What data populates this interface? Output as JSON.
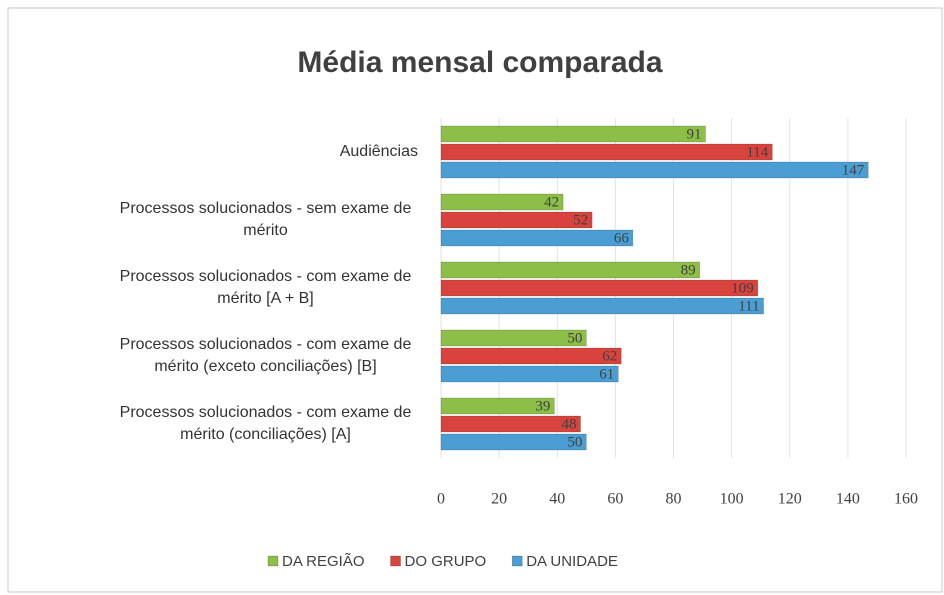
{
  "chart_data": {
    "type": "barh",
    "title": "Média mensal comparada",
    "categories": [
      "Audiências",
      "Processos solucionados - sem exame de mérito",
      "Processos solucionados - com exame de mérito [A + B]",
      "Processos solucionados - com exame de mérito (exceto conciliações) [B]",
      "Processos solucionados - com exame de mérito (conciliações) [A]"
    ],
    "series": [
      {
        "name": "DA REGIÃO",
        "color": "#8dbe47",
        "values": [
          91,
          42,
          89,
          50,
          39
        ]
      },
      {
        "name": "DO GRUPO",
        "color": "#d8433d",
        "values": [
          114,
          52,
          109,
          62,
          48
        ]
      },
      {
        "name": "DA UNIDADE",
        "color": "#4a9ed3",
        "values": [
          147,
          66,
          111,
          61,
          50
        ]
      }
    ],
    "xlim": [
      0,
      160
    ],
    "xticks": [
      0,
      20,
      40,
      60,
      80,
      100,
      120,
      140,
      160
    ],
    "grid": true,
    "legend": "bottom"
  }
}
